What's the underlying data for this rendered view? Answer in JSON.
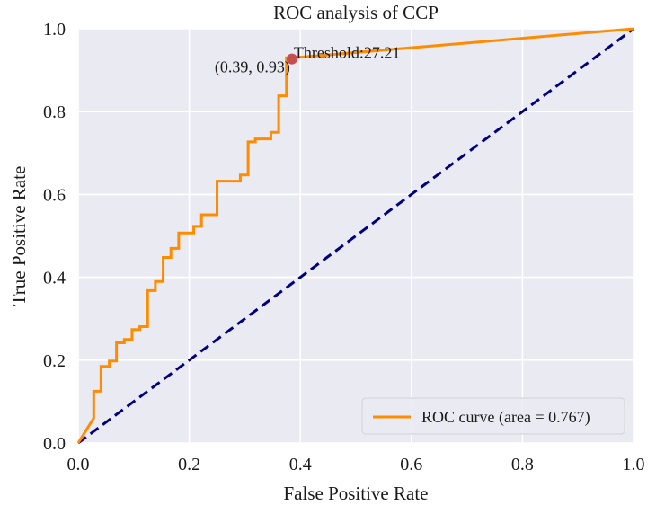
{
  "chart_data": {
    "type": "line",
    "title": "ROC analysis of CCP",
    "xlabel": "False Positive Rate",
    "ylabel": "True Positive Rate",
    "xlim": [
      0.0,
      1.0
    ],
    "ylim": [
      0.0,
      1.0
    ],
    "xticks": [
      "0.0",
      "0.2",
      "0.4",
      "0.6",
      "0.8",
      "1.0"
    ],
    "yticks": [
      "0.0",
      "0.2",
      "0.4",
      "0.6",
      "0.8",
      "1.0"
    ],
    "grid": true,
    "legend_position": "bottom-right",
    "series": [
      {
        "name": "ROC curve (area = 0.767)",
        "color": "#ff8c00",
        "style": "solid",
        "x": [
          0.0,
          0.028,
          0.028,
          0.041,
          0.041,
          0.056,
          0.056,
          0.069,
          0.069,
          0.083,
          0.083,
          0.097,
          0.097,
          0.111,
          0.111,
          0.125,
          0.125,
          0.139,
          0.139,
          0.153,
          0.153,
          0.167,
          0.167,
          0.181,
          0.181,
          0.208,
          0.208,
          0.222,
          0.222,
          0.25,
          0.25,
          0.292,
          0.292,
          0.306,
          0.306,
          0.319,
          0.319,
          0.347,
          0.347,
          0.361,
          0.361,
          0.375,
          0.375,
          0.389,
          0.389,
          1.0
        ],
        "y": [
          0.0,
          0.06,
          0.125,
          0.125,
          0.185,
          0.185,
          0.198,
          0.198,
          0.242,
          0.242,
          0.25,
          0.25,
          0.274,
          0.274,
          0.281,
          0.281,
          0.368,
          0.368,
          0.39,
          0.39,
          0.448,
          0.448,
          0.47,
          0.47,
          0.507,
          0.507,
          0.523,
          0.523,
          0.551,
          0.551,
          0.632,
          0.632,
          0.647,
          0.647,
          0.727,
          0.727,
          0.734,
          0.734,
          0.75,
          0.75,
          0.838,
          0.838,
          0.93,
          0.93,
          0.93,
          1.0
        ]
      },
      {
        "name": "",
        "color": "#000080",
        "style": "dashed",
        "x": [
          0.0,
          1.0
        ],
        "y": [
          0.0,
          1.0
        ]
      }
    ],
    "point": {
      "x": 0.385,
      "y": 0.927,
      "color": "#c44e52"
    },
    "annotations": [
      {
        "text": "Threshold:27.21",
        "x": 0.385,
        "y": 0.927,
        "anchor": "start"
      },
      {
        "text": "(0.39, 0.93)",
        "x": 0.385,
        "y": 0.927,
        "anchor": "end"
      }
    ],
    "plot_background": "#eaeaf2",
    "grid_color": "#ffffff"
  }
}
